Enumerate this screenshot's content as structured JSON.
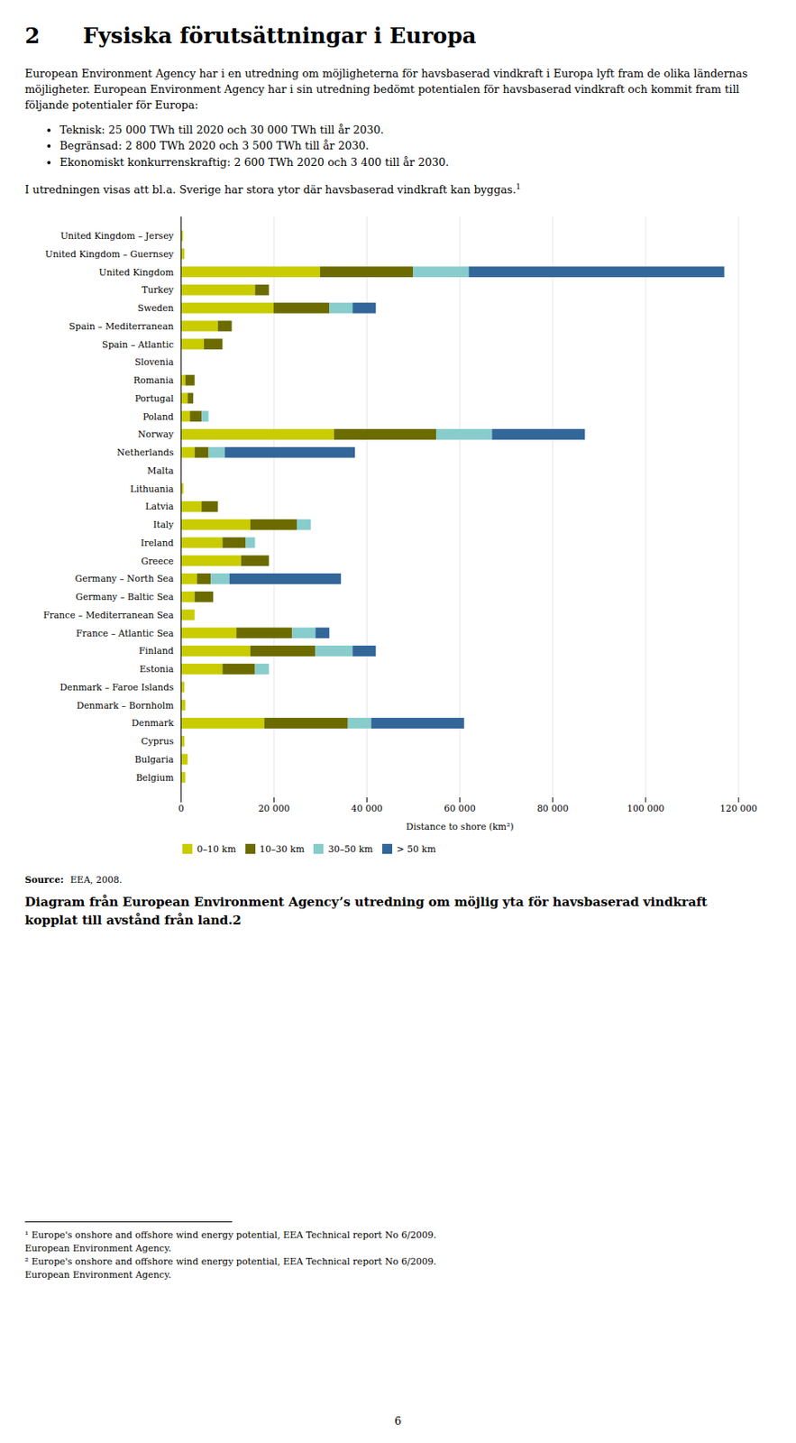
{
  "chart_data": {
    "type": "bar",
    "orientation": "horizontal",
    "stacked": true,
    "grid": true,
    "title": "Fysiska förutsättningar i Europa",
    "annotations": [
      "2",
      "European Environment Agency har i en utredning om möjligheterna för havsbaserad vindkraft i Europa lyft fram de olika ländernas möjligheter. European Environment Agency har i sin utredning bedömt potentialen för havsbaserad vindkraft och kommit fram till följande potentialer för Europa:",
      "Teknisk: 25 000 TWh till 2020 och 30 000 TWh till år 2030.",
      "Begränsad: 2 800 TWh 2020 och 3 500 TWh till år 2030.",
      "Ekonomiskt konkurrenskraftig: 2 600 TWh 2020 och 3 400 till år 2030.",
      "I utredningen visas att bl.a. Sverige har stora ytor där havsbaserad vindkraft kan byggas.",
      "1",
      "Source:",
      "EEA, 2008.",
      "Diagram från European Environment Agency’s utredning om möjlig yta för havsbaserad vindkraft kopplat till avstånd från land.",
      "2",
      "¹ Europe's onshore and offshore wind energy potential, EEA Technical report No 6/2009.",
      "European Environment Agency.",
      "² Europe's onshore and offshore wind energy potential, EEA Technical report No 6/2009.",
      "European Environment Agency.",
      "6"
    ],
    "xlabel": "Distance to shore (km²)",
    "xlim": [
      0,
      120000
    ],
    "xticks": [
      0,
      {
        "value": 20000,
        "label": "20 000"
      },
      {
        "value": 40000,
        "label": "40 000"
      },
      {
        "value": 60000,
        "label": "60 000"
      },
      {
        "value": 80000,
        "label": "80 000"
      },
      {
        "value": 100000,
        "label": "100 000"
      },
      {
        "value": 120000,
        "label": "120 000"
      }
    ],
    "legend": "lower left",
    "categories": [
      "United Kingdom – Jersey",
      "United Kingdom – Guernsey",
      "United Kingdom",
      "Turkey",
      "Sweden",
      "Spain – Mediterranean",
      "Spain – Atlantic",
      "Slovenia",
      "Romania",
      "Portugal",
      "Poland",
      "Norway",
      "Netherlands",
      "Malta",
      "Lithuania",
      "Latvia",
      "Italy",
      "Ireland",
      "Greece",
      "Germany – North Sea",
      "Germany – Baltic Sea",
      "France – Mediterranean Sea",
      "France – Atlantic Sea",
      "Finland",
      "Estonia",
      "Denmark – Faroe Islands",
      "Denmark – Bornholm",
      "Denmark",
      "Cyprus",
      "Bulgaria",
      "Belgium"
    ],
    "series": [
      {
        "name": "0–10 km",
        "color": "#c8cc00",
        "values": [
          500,
          800,
          30000,
          16000,
          20000,
          8000,
          5000,
          100,
          1000,
          1500,
          2000,
          33000,
          3000,
          100,
          600,
          4500,
          15000,
          9000,
          13000,
          3500,
          3000,
          3000,
          12000,
          15000,
          9000,
          800,
          1000,
          18000,
          800,
          1500,
          1000
        ]
      },
      {
        "name": "10–30 km",
        "color": "#6b6b00",
        "values": [
          0,
          0,
          20000,
          3000,
          12000,
          3000,
          4000,
          0,
          2000,
          1200,
          2500,
          22000,
          3000,
          0,
          0,
          3500,
          10000,
          5000,
          6000,
          3000,
          4000,
          0,
          12000,
          14000,
          7000,
          0,
          0,
          18000,
          0,
          0,
          0
        ]
      },
      {
        "name": "30–50 km",
        "color": "#88cccc",
        "values": [
          0,
          0,
          12000,
          0,
          5000,
          0,
          0,
          0,
          0,
          0,
          1500,
          12000,
          3500,
          0,
          0,
          0,
          3000,
          2000,
          0,
          4000,
          0,
          0,
          5000,
          8000,
          3000,
          0,
          0,
          5000,
          0,
          0,
          0
        ]
      },
      {
        "name": "> 50 km",
        "color": "#336699",
        "values": [
          0,
          0,
          55000,
          0,
          5000,
          0,
          0,
          0,
          0,
          0,
          0,
          20000,
          28000,
          0,
          0,
          0,
          0,
          0,
          0,
          24000,
          0,
          0,
          3000,
          5000,
          0,
          0,
          0,
          20000,
          0,
          0,
          0
        ]
      }
    ]
  }
}
